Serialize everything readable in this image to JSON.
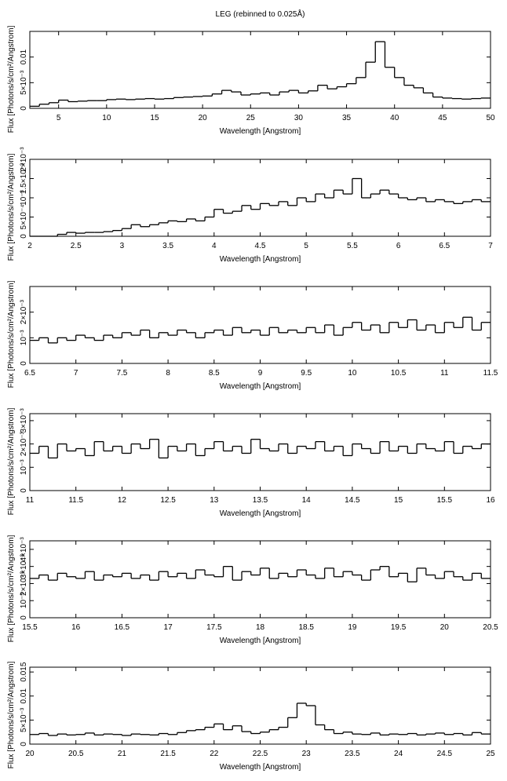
{
  "chart_data": [
    {
      "type": "line",
      "title": "LEG (rebinned to 0.025Å)",
      "xlabel": "Wavelength [Angstrom]",
      "ylabel": "Flux [Photons/s/cm²/Angstrom]",
      "color": "#000000",
      "xlim": [
        2,
        50
      ],
      "xticks": [
        5,
        10,
        15,
        20,
        25,
        30,
        35,
        40,
        45,
        50
      ],
      "ylim": [
        0,
        0.015
      ],
      "yticks": [
        0,
        {
          "value": 0.005,
          "label": "5×10⁻³"
        },
        0.01
      ],
      "x": [
        2.5,
        3.5,
        4.5,
        5.5,
        6.5,
        7.5,
        8.5,
        9.5,
        10.5,
        11.5,
        12.5,
        13.5,
        14.5,
        15.5,
        16.5,
        17.5,
        18.5,
        19.5,
        20.5,
        21.5,
        22.5,
        23.5,
        24.5,
        25.5,
        26.5,
        27.5,
        28.5,
        29.5,
        30.5,
        31.5,
        32.5,
        33.5,
        34.5,
        35.5,
        36.5,
        37.5,
        38.5,
        39.5,
        40.5,
        41.5,
        42.5,
        43.5,
        44.5,
        45.5,
        46.5,
        47.5,
        48.5,
        49.5
      ],
      "values": [
        0.0004,
        0.0008,
        0.0011,
        0.0016,
        0.0013,
        0.0014,
        0.0015,
        0.0015,
        0.0017,
        0.0018,
        0.0017,
        0.0018,
        0.0019,
        0.0018,
        0.0019,
        0.0021,
        0.0022,
        0.0023,
        0.0024,
        0.0028,
        0.0035,
        0.0032,
        0.0026,
        0.0028,
        0.003,
        0.0026,
        0.0032,
        0.0035,
        0.003,
        0.0034,
        0.0045,
        0.0038,
        0.0042,
        0.0048,
        0.006,
        0.009,
        0.013,
        0.008,
        0.006,
        0.0045,
        0.004,
        0.003,
        0.0022,
        0.002,
        0.0019,
        0.0018,
        0.0019,
        0.002
      ]
    },
    {
      "type": "line",
      "xlabel": "Wavelength [Angstrom]",
      "ylabel": "Flux [Photons/s/cm²/Angstrom]",
      "color": "#000000",
      "xlim": [
        2,
        7
      ],
      "xticks": [
        2,
        2.5,
        3,
        3.5,
        4,
        4.5,
        5,
        5.5,
        6,
        6.5,
        7
      ],
      "ylim": [
        0,
        0.002
      ],
      "yticks": [
        0,
        {
          "value": 0.0005,
          "label": "5×10⁻⁴"
        },
        {
          "value": 0.001,
          "label": "10⁻³"
        },
        {
          "value": 0.0015,
          "label": "1.5×10⁻³"
        },
        {
          "value": 0.002,
          "label": "2×10⁻³"
        }
      ],
      "x": [
        2.05,
        2.15,
        2.25,
        2.35,
        2.45,
        2.55,
        2.65,
        2.75,
        2.85,
        2.95,
        3.05,
        3.15,
        3.25,
        3.35,
        3.45,
        3.55,
        3.65,
        3.75,
        3.85,
        3.95,
        4.05,
        4.15,
        4.25,
        4.35,
        4.45,
        4.55,
        4.65,
        4.75,
        4.85,
        4.95,
        5.05,
        5.15,
        5.25,
        5.35,
        5.45,
        5.55,
        5.65,
        5.75,
        5.85,
        5.95,
        6.05,
        6.15,
        6.25,
        6.35,
        6.45,
        6.55,
        6.65,
        6.75,
        6.85,
        6.95
      ],
      "values": [
        0,
        0,
        0,
        5e-05,
        0.0001,
        8e-05,
        0.0001,
        0.0001,
        0.00012,
        0.00015,
        0.0002,
        0.0003,
        0.00025,
        0.0003,
        0.00035,
        0.0004,
        0.00038,
        0.00045,
        0.0004,
        0.0005,
        0.0007,
        0.0006,
        0.00065,
        0.0008,
        0.0007,
        0.00085,
        0.0008,
        0.0009,
        0.0008,
        0.001,
        0.0009,
        0.0011,
        0.001,
        0.0012,
        0.0011,
        0.0015,
        0.001,
        0.0011,
        0.0012,
        0.0011,
        0.001,
        0.00095,
        0.001,
        0.0009,
        0.00095,
        0.0009,
        0.00085,
        0.0009,
        0.00095,
        0.0009
      ]
    },
    {
      "type": "line",
      "xlabel": "Wavelength [Angstrom]",
      "ylabel": "Flux [Photons/s/cm²/Angstrom]",
      "color": "#000000",
      "xlim": [
        6.5,
        11.5
      ],
      "xticks": [
        6.5,
        7,
        7.5,
        8,
        8.5,
        9,
        9.5,
        10,
        10.5,
        11,
        11.5
      ],
      "ylim": [
        0,
        0.003
      ],
      "yticks": [
        0,
        {
          "value": 0.001,
          "label": "10⁻³"
        },
        {
          "value": 0.002,
          "label": "2×10⁻³"
        }
      ],
      "x": [
        6.55,
        6.65,
        6.75,
        6.85,
        6.95,
        7.05,
        7.15,
        7.25,
        7.35,
        7.45,
        7.55,
        7.65,
        7.75,
        7.85,
        7.95,
        8.05,
        8.15,
        8.25,
        8.35,
        8.45,
        8.55,
        8.65,
        8.75,
        8.85,
        8.95,
        9.05,
        9.15,
        9.25,
        9.35,
        9.45,
        9.55,
        9.65,
        9.75,
        9.85,
        9.95,
        10.05,
        10.15,
        10.25,
        10.35,
        10.45,
        10.55,
        10.65,
        10.75,
        10.85,
        10.95,
        11.05,
        11.15,
        11.25,
        11.35,
        11.45
      ],
      "values": [
        0.0009,
        0.001,
        0.0008,
        0.001,
        0.0009,
        0.0011,
        0.001,
        0.0009,
        0.0011,
        0.001,
        0.0012,
        0.0011,
        0.0013,
        0.001,
        0.0012,
        0.0011,
        0.0013,
        0.0012,
        0.001,
        0.0012,
        0.0013,
        0.0011,
        0.0014,
        0.0012,
        0.0013,
        0.0011,
        0.0014,
        0.0012,
        0.0013,
        0.0012,
        0.0014,
        0.0012,
        0.0015,
        0.0011,
        0.0014,
        0.0016,
        0.0013,
        0.0015,
        0.0012,
        0.0016,
        0.0014,
        0.0017,
        0.0013,
        0.0015,
        0.0012,
        0.0016,
        0.0014,
        0.0018,
        0.0013,
        0.0016
      ]
    },
    {
      "type": "line",
      "xlabel": "Wavelength [Angstrom]",
      "ylabel": "Flux [Photons/s/cm²/Angstrom]",
      "color": "#000000",
      "xlim": [
        11,
        16
      ],
      "xticks": [
        11,
        11.5,
        12,
        12.5,
        13,
        13.5,
        14,
        14.5,
        15,
        15.5,
        16
      ],
      "ylim": [
        0,
        0.0033
      ],
      "yticks": [
        0,
        {
          "value": 0.001,
          "label": "10⁻³"
        },
        {
          "value": 0.002,
          "label": "2×10⁻³"
        },
        {
          "value": 0.003,
          "label": "3×10⁻³"
        }
      ],
      "x": [
        11.05,
        11.15,
        11.25,
        11.35,
        11.45,
        11.55,
        11.65,
        11.75,
        11.85,
        11.95,
        12.05,
        12.15,
        12.25,
        12.35,
        12.45,
        12.55,
        12.65,
        12.75,
        12.85,
        12.95,
        13.05,
        13.15,
        13.25,
        13.35,
        13.45,
        13.55,
        13.65,
        13.75,
        13.85,
        13.95,
        14.05,
        14.15,
        14.25,
        14.35,
        14.45,
        14.55,
        14.65,
        14.75,
        14.85,
        14.95,
        15.05,
        15.15,
        15.25,
        15.35,
        15.45,
        15.55,
        15.65,
        15.75,
        15.85,
        15.95
      ],
      "values": [
        0.0016,
        0.0019,
        0.0014,
        0.002,
        0.0017,
        0.0018,
        0.0015,
        0.0021,
        0.0017,
        0.0019,
        0.0016,
        0.002,
        0.0018,
        0.0022,
        0.0014,
        0.0019,
        0.0017,
        0.002,
        0.0015,
        0.0018,
        0.0021,
        0.0017,
        0.0019,
        0.0016,
        0.0022,
        0.0018,
        0.0017,
        0.002,
        0.0016,
        0.0019,
        0.0018,
        0.0021,
        0.0017,
        0.0019,
        0.0015,
        0.002,
        0.0018,
        0.0016,
        0.0021,
        0.0017,
        0.0019,
        0.0016,
        0.002,
        0.0018,
        0.0017,
        0.0021,
        0.0016,
        0.0019,
        0.0018,
        0.002
      ]
    },
    {
      "type": "line",
      "xlabel": "Wavelength [Angstrom]",
      "ylabel": "Flux [Photons/s/cm²/Angstrom]",
      "color": "#000000",
      "xlim": [
        15.5,
        20.5
      ],
      "xticks": [
        15.5,
        16,
        16.5,
        17,
        17.5,
        18,
        18.5,
        19,
        19.5,
        20,
        20.5
      ],
      "ylim": [
        0,
        0.0045
      ],
      "yticks": [
        0,
        {
          "value": 0.001,
          "label": "10⁻³"
        },
        {
          "value": 0.002,
          "label": "2×10⁻³"
        },
        {
          "value": 0.003,
          "label": "3×10⁻³"
        },
        {
          "value": 0.004,
          "label": "4×10⁻³"
        }
      ],
      "x": [
        15.55,
        15.65,
        15.75,
        15.85,
        15.95,
        16.05,
        16.15,
        16.25,
        16.35,
        16.45,
        16.55,
        16.65,
        16.75,
        16.85,
        16.95,
        17.05,
        17.15,
        17.25,
        17.35,
        17.45,
        17.55,
        17.65,
        17.75,
        17.85,
        17.95,
        18.05,
        18.15,
        18.25,
        18.35,
        18.45,
        18.55,
        18.65,
        18.75,
        18.85,
        18.95,
        19.05,
        19.15,
        19.25,
        19.35,
        19.45,
        19.55,
        19.65,
        19.75,
        19.85,
        19.95,
        20.05,
        20.15,
        20.25,
        20.35,
        20.45
      ],
      "values": [
        0.0023,
        0.0025,
        0.0022,
        0.0026,
        0.0024,
        0.0023,
        0.0027,
        0.0022,
        0.0025,
        0.0024,
        0.0026,
        0.0023,
        0.0025,
        0.0022,
        0.0027,
        0.0024,
        0.0026,
        0.0023,
        0.0028,
        0.0025,
        0.0024,
        0.003,
        0.0022,
        0.0027,
        0.0025,
        0.0029,
        0.0023,
        0.0026,
        0.0024,
        0.0028,
        0.0025,
        0.0023,
        0.0029,
        0.0024,
        0.0027,
        0.0025,
        0.0022,
        0.0028,
        0.003,
        0.0024,
        0.0026,
        0.0021,
        0.0029,
        0.0025,
        0.0023,
        0.0027,
        0.0024,
        0.0022,
        0.0026,
        0.0023
      ]
    },
    {
      "type": "line",
      "xlabel": "Wavelength [Angstrom]",
      "ylabel": "Flux [Photons/s/cm²/Angstrom]",
      "color": "#000000",
      "xlim": [
        20,
        25
      ],
      "xticks": [
        20,
        20.5,
        21,
        21.5,
        22,
        22.5,
        23,
        23.5,
        24,
        24.5,
        25
      ],
      "ylim": [
        0,
        0.016
      ],
      "yticks": [
        0,
        {
          "value": 0.005,
          "label": "5×10⁻³"
        },
        0.01,
        0.015
      ],
      "x": [
        20.05,
        20.15,
        20.25,
        20.35,
        20.45,
        20.55,
        20.65,
        20.75,
        20.85,
        20.95,
        21.05,
        21.15,
        21.25,
        21.35,
        21.45,
        21.55,
        21.65,
        21.75,
        21.85,
        21.95,
        22.05,
        22.15,
        22.25,
        22.35,
        22.45,
        22.55,
        22.65,
        22.75,
        22.85,
        22.95,
        23.05,
        23.15,
        23.25,
        23.35,
        23.45,
        23.55,
        23.65,
        23.75,
        23.85,
        23.95,
        24.05,
        24.15,
        24.25,
        24.35,
        24.45,
        24.55,
        24.65,
        24.75,
        24.85,
        24.95
      ],
      "values": [
        0.002,
        0.0022,
        0.0018,
        0.0021,
        0.0019,
        0.002,
        0.0023,
        0.0019,
        0.0021,
        0.002,
        0.0018,
        0.0021,
        0.002,
        0.0019,
        0.0022,
        0.002,
        0.0024,
        0.0028,
        0.003,
        0.0035,
        0.0042,
        0.003,
        0.0038,
        0.0026,
        0.0022,
        0.0025,
        0.003,
        0.0035,
        0.0055,
        0.0085,
        0.008,
        0.004,
        0.003,
        0.0022,
        0.0025,
        0.0021,
        0.002,
        0.0023,
        0.0019,
        0.0021,
        0.002,
        0.0022,
        0.0019,
        0.0021,
        0.0023,
        0.002,
        0.0022,
        0.0019,
        0.0024,
        0.0021
      ]
    }
  ]
}
